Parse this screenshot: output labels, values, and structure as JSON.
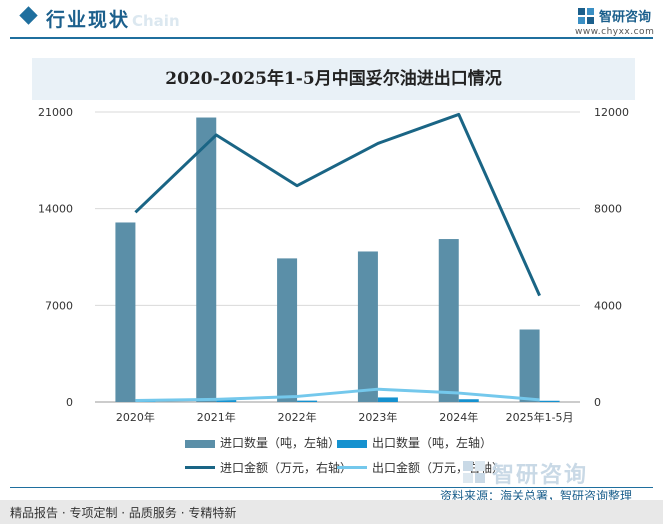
{
  "header": {
    "title": "行业现状",
    "ghost_text": "Chain",
    "logo_text": "智研咨询",
    "logo_url": "www.chyxx.com"
  },
  "chart_data": {
    "type": "bar",
    "title": "2020-2025年1-5月中国妥尔油进出口情况",
    "categories": [
      "2020年",
      "2021年",
      "2022年",
      "2023年",
      "2024年",
      "2025年1-5月"
    ],
    "y_left": {
      "ticks": [
        0,
        7000,
        14000,
        21000
      ],
      "ylim": [
        0,
        21000
      ]
    },
    "y_right": {
      "ticks": [
        0,
        4000,
        8000,
        12000
      ],
      "ylim": [
        0,
        12000
      ]
    },
    "grid": true,
    "legend_position": "bottom",
    "series": [
      {
        "name": "进口数量（吨，左轴）",
        "kind": "bar",
        "axis": "left",
        "color": "#5b8fa8",
        "values": [
          13000,
          20600,
          10400,
          10900,
          11800,
          5250
        ]
      },
      {
        "name": "出口数量（吨，左轴）",
        "kind": "bar",
        "axis": "left",
        "color": "#1591cf",
        "values": [
          80,
          150,
          100,
          330,
          200,
          90
        ]
      },
      {
        "name": "进口金额（万元，右轴）",
        "kind": "line",
        "axis": "right",
        "color": "#1a6585",
        "values": [
          7850,
          11050,
          8950,
          10700,
          11900,
          4400
        ]
      },
      {
        "name": "出口金额（万元，右轴）",
        "kind": "line",
        "axis": "right",
        "color": "#74c8ec",
        "values": [
          60,
          110,
          230,
          530,
          370,
          90
        ]
      }
    ]
  },
  "footer": {
    "left_text": "精品报告 · 专项定制 · 品质服务 · 专精特新",
    "source": "资料来源：海关总署，智研咨询整理",
    "brand": "智研咨询"
  }
}
